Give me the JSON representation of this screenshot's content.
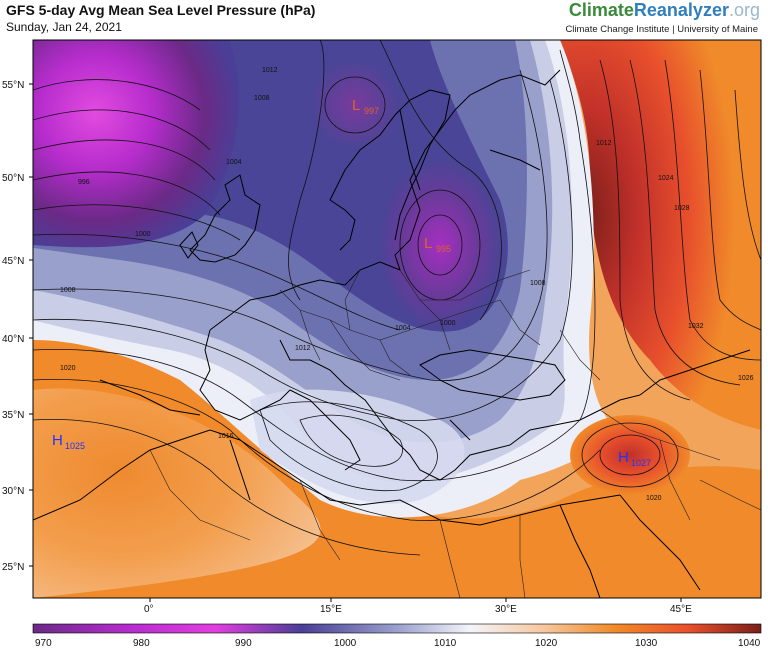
{
  "header": {
    "title": "GFS 5-day Avg Mean Sea Level Pressure (hPa)",
    "date": "Sunday, Jan 24, 2021",
    "brand_part1": "Climate",
    "brand_part2": "Reanalyzer",
    "brand_part3": ".org",
    "brand_sub": "Climate Change Institute | University of Maine"
  },
  "map": {
    "lat_ticks": [
      "55°N",
      "50°N",
      "45°N",
      "40°N",
      "35°N",
      "30°N",
      "25°N"
    ],
    "lon_ticks": [
      "0°",
      "15°E",
      "30°E",
      "45°E"
    ],
    "pressure_centers": [
      {
        "type": "L",
        "value": "997",
        "color": "#e0602a"
      },
      {
        "type": "L",
        "value": "995",
        "color": "#e0602a"
      },
      {
        "type": "H",
        "value": "1025",
        "color": "#2233ff"
      },
      {
        "type": "H",
        "value": "1027",
        "color": "#2233ff"
      }
    ],
    "contour_labels": [
      "1012",
      "1008",
      "1004",
      "996",
      "1000",
      "1008",
      "1020",
      "1016",
      "1012",
      "1024",
      "1028",
      "1032",
      "1026",
      "1020",
      "1004",
      "1008",
      "1000",
      "1012"
    ]
  },
  "colorbar": {
    "labels": [
      "970",
      "980",
      "990",
      "1000",
      "1010",
      "1020",
      "1030",
      "1040"
    ],
    "colors": [
      "#6a2a86",
      "#b52ccc",
      "#e13fe0",
      "#4a3f96",
      "#8f95c8",
      "#f4f4fb",
      "#f6c8a0",
      "#f08a2a",
      "#e8502c",
      "#c0302a",
      "#7a1f1a"
    ]
  }
}
